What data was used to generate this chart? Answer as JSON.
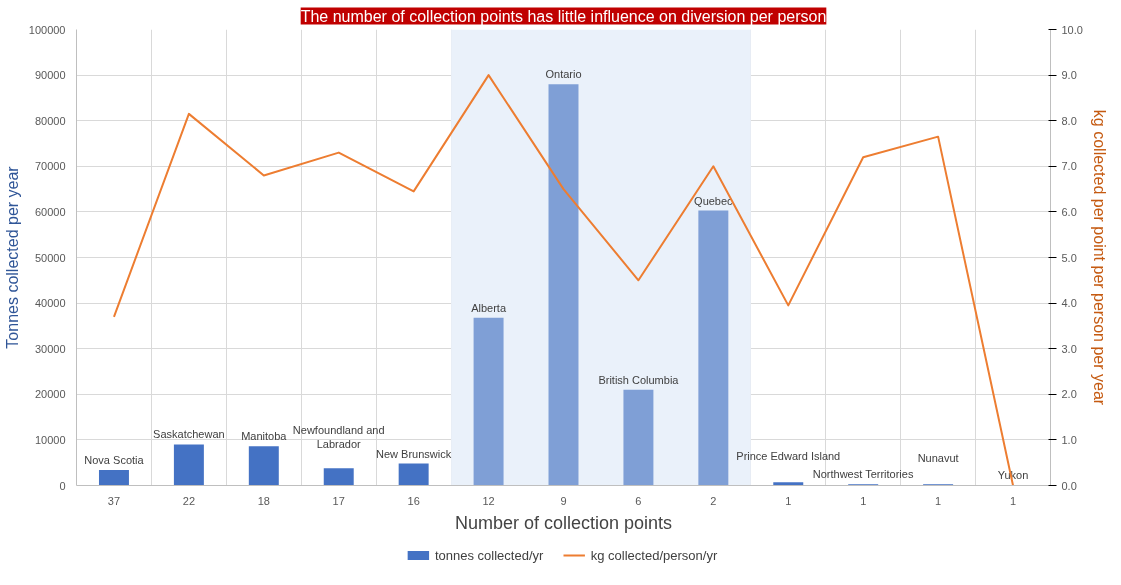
{
  "chart_data": {
    "type": "bar",
    "title": "The number of collection points has little influence on diversion per person",
    "xlabel": "Number of collection points",
    "ylabel": "Tonnes collected per year",
    "y2label": "kg collected per point per person per year",
    "categories": [
      "37",
      "22",
      "18",
      "17",
      "16",
      "12",
      "9",
      "6",
      "2",
      "1",
      "1",
      "1",
      "1"
    ],
    "series": [
      {
        "name": "tonnes collected/yr",
        "color": "#4472c4",
        "colors": [
          "#4472c4",
          "#4472c4",
          "#4472c4",
          "#4472c4",
          "#4472c4",
          "#7f9fd6",
          "#7f9fd6",
          "#7f9fd6",
          "#7f9fd6",
          "#4472c4",
          "#4472c4",
          "#4472c4",
          "#4472c4"
        ],
        "values": [
          3400,
          9000,
          8600,
          3800,
          4800,
          36800,
          88000,
          21000,
          60300,
          700,
          300,
          300,
          100
        ],
        "value_labels": [
          "Nova Scotia",
          "Saskatchewan",
          "Manitoba",
          "Newfoundland and\nLabrador",
          "New Brunswick",
          "Alberta",
          "Ontario",
          "British Columbia",
          "Quebec",
          "Prince Edward Island",
          "Northwest Territories",
          "Nunavut",
          "Yukon"
        ]
      },
      {
        "name": "kg collected/person/yr",
        "type": "line",
        "axis": "y2",
        "color": "#ed7d31",
        "values": [
          3.7,
          8.15,
          6.8,
          7.3,
          6.45,
          9.0,
          6.5,
          4.5,
          7.0,
          3.95,
          7.2,
          7.65,
          0.0
        ]
      }
    ],
    "ylim": [
      0,
      100000
    ],
    "yticks": [
      0,
      10000,
      20000,
      30000,
      40000,
      50000,
      60000,
      70000,
      80000,
      90000,
      100000
    ],
    "y2lim": [
      0,
      10
    ],
    "y2ticks": [
      {
        "value": 0,
        "label": "0.0"
      },
      {
        "value": 1,
        "label": "1.0"
      },
      {
        "value": 2,
        "label": "2.0"
      },
      {
        "value": 3,
        "label": "3.0"
      },
      {
        "value": 4,
        "label": "4.0"
      },
      {
        "value": 5,
        "label": "5.0"
      },
      {
        "value": 6,
        "label": "6.0"
      },
      {
        "value": 7,
        "label": "7.0"
      },
      {
        "value": 8,
        "label": "8.0"
      },
      {
        "value": 9,
        "label": "9.0"
      },
      {
        "value": 10,
        "label": "10.0"
      }
    ],
    "bands": [
      {
        "axis": "x",
        "from": "12",
        "to": "2",
        "color": "#eaf1fa"
      }
    ],
    "grid": true,
    "legend": "bottom",
    "marker": "none",
    "line_style": "solid"
  }
}
